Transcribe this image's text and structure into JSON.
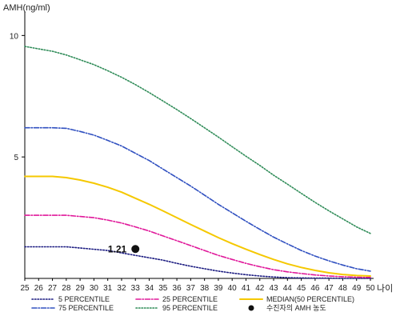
{
  "chart_data": {
    "type": "line",
    "ylabel": "AMH(ng/ml)",
    "xlabel": "나이",
    "ylim": [
      0,
      11
    ],
    "xlim": [
      25,
      50
    ],
    "yticks": [
      5,
      10
    ],
    "x": [
      25,
      26,
      27,
      28,
      29,
      30,
      31,
      32,
      33,
      34,
      35,
      36,
      37,
      38,
      39,
      40,
      41,
      42,
      43,
      44,
      45,
      46,
      47,
      48,
      49,
      50
    ],
    "series": [
      {
        "name": "5 PERCENTILE",
        "color": "#1a1a80",
        "style": "dotted",
        "values": [
          1.3,
          1.3,
          1.3,
          1.3,
          1.25,
          1.2,
          1.15,
          1.05,
          0.95,
          0.85,
          0.75,
          0.62,
          0.5,
          0.4,
          0.3,
          0.22,
          0.15,
          0.1,
          0.06,
          0.03,
          0.02,
          0.01,
          0.01,
          0.0,
          0.0,
          0.0
        ]
      },
      {
        "name": "25 PERCENTILE",
        "color": "#e0189a",
        "style": "dashdot",
        "values": [
          2.6,
          2.6,
          2.6,
          2.6,
          2.55,
          2.5,
          2.4,
          2.28,
          2.12,
          1.95,
          1.75,
          1.55,
          1.35,
          1.15,
          0.95,
          0.78,
          0.62,
          0.48,
          0.36,
          0.27,
          0.2,
          0.14,
          0.1,
          0.07,
          0.05,
          0.04
        ]
      },
      {
        "name": "MEDIAN(50 PERCENTILE)",
        "color": "#f5c800",
        "style": "solid",
        "values": [
          4.2,
          4.2,
          4.2,
          4.15,
          4.05,
          3.92,
          3.75,
          3.55,
          3.3,
          3.05,
          2.78,
          2.5,
          2.22,
          1.95,
          1.68,
          1.43,
          1.2,
          0.98,
          0.78,
          0.6,
          0.45,
          0.33,
          0.23,
          0.16,
          0.12,
          0.1
        ]
      },
      {
        "name": "75 PERCENTILE",
        "color": "#3050c0",
        "style": "dashdot",
        "values": [
          6.2,
          6.2,
          6.2,
          6.18,
          6.05,
          5.9,
          5.68,
          5.45,
          5.15,
          4.85,
          4.5,
          4.15,
          3.8,
          3.43,
          3.05,
          2.7,
          2.35,
          2.02,
          1.7,
          1.42,
          1.15,
          0.92,
          0.72,
          0.55,
          0.4,
          0.3
        ]
      },
      {
        "name": "95 PERCENTILE",
        "color": "#2e8b57",
        "style": "dotted",
        "values": [
          9.55,
          9.45,
          9.35,
          9.2,
          9.0,
          8.8,
          8.55,
          8.28,
          7.98,
          7.65,
          7.3,
          6.95,
          6.58,
          6.2,
          5.82,
          5.42,
          5.03,
          4.65,
          4.25,
          3.88,
          3.5,
          3.13,
          2.78,
          2.45,
          2.12,
          1.85
        ]
      }
    ],
    "point": {
      "label": "1.21",
      "x": 33,
      "y": 1.21,
      "legend": "수진자의 AMH 농도",
      "color": "#111111"
    },
    "legend_placement": "bottom",
    "grid": false
  }
}
